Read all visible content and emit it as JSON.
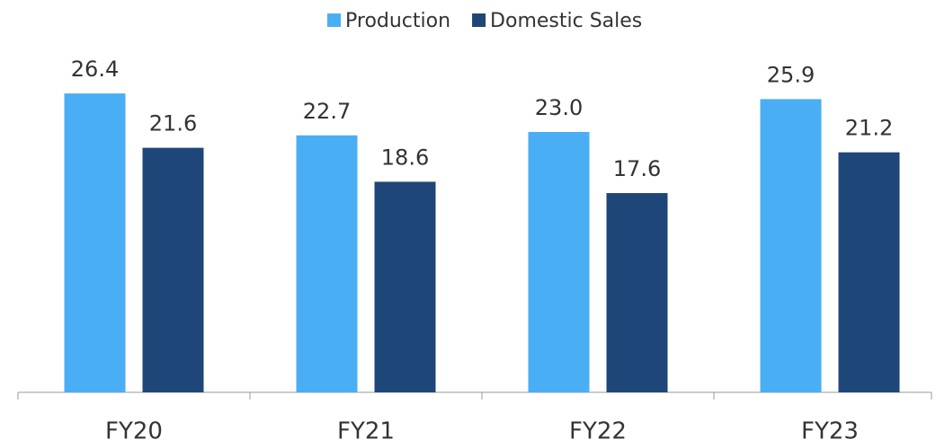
{
  "chart_data": {
    "type": "bar",
    "categories": [
      "FY20",
      "FY21",
      "FY22",
      "FY23"
    ],
    "series": [
      {
        "name": "Production",
        "color": "#4aaef5",
        "values": [
          26.4,
          22.7,
          23.0,
          25.9
        ],
        "value_labels": [
          "26.4",
          "22.7",
          "23.0",
          "25.9"
        ]
      },
      {
        "name": "Domestic Sales",
        "color": "#1f4678",
        "values": [
          21.6,
          18.6,
          17.6,
          21.2
        ],
        "value_labels": [
          "21.6",
          "18.6",
          "17.6",
          "21.2"
        ]
      }
    ],
    "legend": "top"
  }
}
